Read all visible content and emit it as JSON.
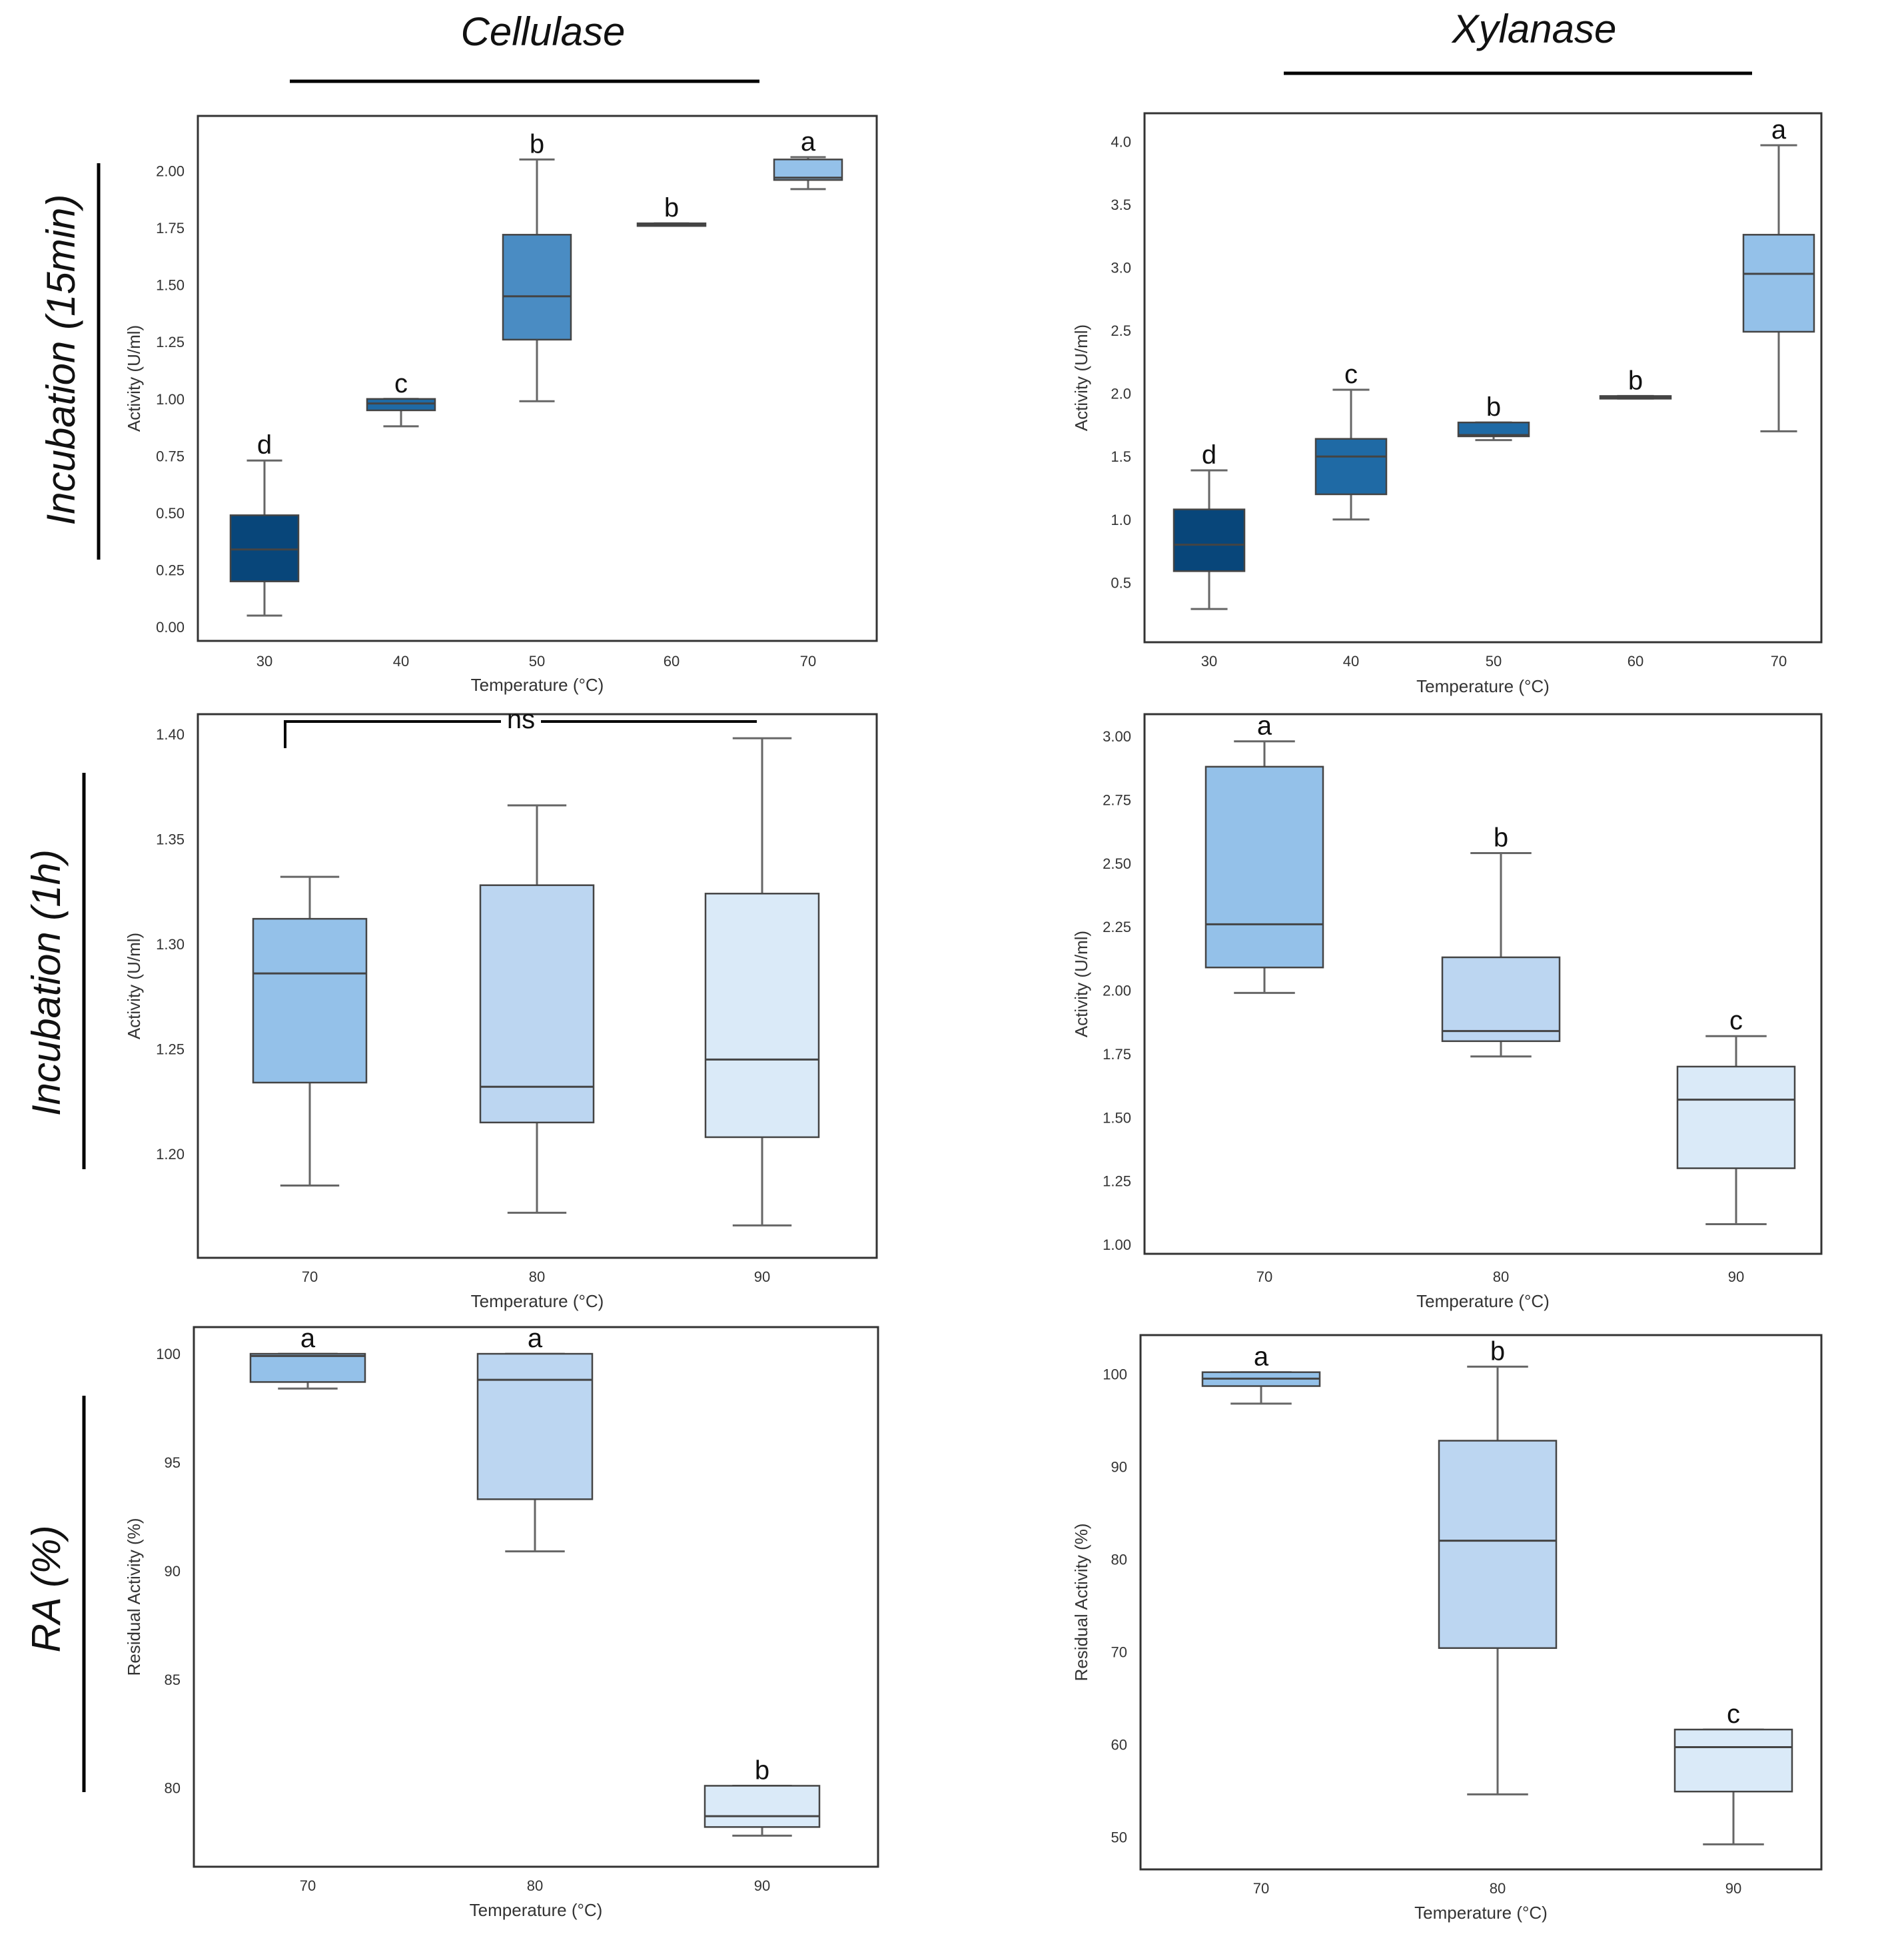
{
  "column_titles": [
    "Cellulase",
    "Xylanase"
  ],
  "row_titles": [
    "Incubation (15min)",
    "Incubation (1h)",
    "RA (%)"
  ],
  "colors": {
    "t30": "#08467a",
    "t40": "#1f6aa5",
    "t50": "#4a8cc3",
    "t60": "#1f6aa5",
    "t70": "#94c1e9",
    "t80": "#bcd6f1",
    "t90": "#daeaf8"
  },
  "chart_data": [
    {
      "type": "box",
      "name": "cellulase-15min",
      "xlabel": "Temperature (°C)",
      "ylabel": "Activity (U/ml)",
      "ylim": [
        -0.02,
        2.2
      ],
      "yticks": [
        0.0,
        0.25,
        0.5,
        0.75,
        1.0,
        1.25,
        1.5,
        1.75,
        2.0
      ],
      "ytick_labels": [
        "0.00",
        "0.25",
        "0.50",
        "0.75",
        "1.00",
        "1.25",
        "1.50",
        "1.75",
        "2.00"
      ],
      "categories": [
        "30",
        "40",
        "50",
        "60",
        "70"
      ],
      "boxes": [
        {
          "min": 0.05,
          "q1": 0.2,
          "median": 0.34,
          "q3": 0.49,
          "max": 0.73,
          "letter": "d",
          "color": "t30"
        },
        {
          "min": 0.88,
          "q1": 0.95,
          "median": 0.98,
          "q3": 1.0,
          "max": 1.0,
          "letter": "c",
          "color": "t40"
        },
        {
          "min": 0.99,
          "q1": 1.26,
          "median": 1.45,
          "q3": 1.72,
          "max": 2.05,
          "letter": "b",
          "color": "t50"
        },
        {
          "min": 1.76,
          "q1": 1.76,
          "median": 1.765,
          "q3": 1.77,
          "max": 1.77,
          "letter": "b",
          "color": "t60"
        },
        {
          "min": 1.92,
          "q1": 1.96,
          "median": 1.97,
          "q3": 2.05,
          "max": 2.06,
          "letter": "a",
          "color": "t70"
        }
      ]
    },
    {
      "type": "box",
      "name": "xylanase-15min",
      "xlabel": "Temperature (°C)",
      "ylabel": "Activity (U/ml)",
      "ylim": [
        0.1,
        4.15
      ],
      "yticks": [
        0.5,
        1.0,
        1.5,
        2.0,
        2.5,
        3.0,
        3.5,
        4.0
      ],
      "ytick_labels": [
        "0.5",
        "1.0",
        "1.5",
        "2.0",
        "2.5",
        "3.0",
        "3.5",
        "4.0"
      ],
      "categories": [
        "30",
        "40",
        "50",
        "60",
        "70"
      ],
      "boxes": [
        {
          "min": 0.29,
          "q1": 0.59,
          "median": 0.8,
          "q3": 1.08,
          "max": 1.39,
          "letter": "d",
          "color": "t30"
        },
        {
          "min": 1.0,
          "q1": 1.2,
          "median": 1.5,
          "q3": 1.64,
          "max": 2.03,
          "letter": "c",
          "color": "t40"
        },
        {
          "min": 1.63,
          "q1": 1.66,
          "median": 1.67,
          "q3": 1.77,
          "max": 1.77,
          "letter": "b",
          "color": "t40"
        },
        {
          "min": 1.96,
          "q1": 1.96,
          "median": 1.97,
          "q3": 1.98,
          "max": 1.98,
          "letter": "b",
          "color": "t60"
        },
        {
          "min": 1.7,
          "q1": 2.49,
          "median": 2.95,
          "q3": 3.26,
          "max": 3.97,
          "letter": "a",
          "color": "t70"
        }
      ]
    },
    {
      "type": "box",
      "name": "cellulase-1h",
      "xlabel": "Temperature (°C)",
      "ylabel": "Activity (U/ml)",
      "ylim": [
        1.155,
        1.405
      ],
      "yticks": [
        1.2,
        1.25,
        1.3,
        1.35,
        1.4
      ],
      "ytick_labels": [
        "1.20",
        "1.25",
        "1.30",
        "1.35",
        "1.40"
      ],
      "categories": [
        "70",
        "80",
        "90"
      ],
      "annotation": "ns",
      "boxes": [
        {
          "min": 1.185,
          "q1": 1.234,
          "median": 1.286,
          "q3": 1.312,
          "max": 1.332,
          "letter": "",
          "color": "t70"
        },
        {
          "min": 1.172,
          "q1": 1.215,
          "median": 1.232,
          "q3": 1.328,
          "max": 1.366,
          "letter": "",
          "color": "t80"
        },
        {
          "min": 1.166,
          "q1": 1.208,
          "median": 1.245,
          "q3": 1.324,
          "max": 1.398,
          "letter": "",
          "color": "t90"
        }
      ]
    },
    {
      "type": "box",
      "name": "xylanase-1h",
      "xlabel": "Temperature (°C)",
      "ylabel": "Activity (U/ml)",
      "ylim": [
        1.0,
        3.05
      ],
      "yticks": [
        1.0,
        1.25,
        1.5,
        1.75,
        2.0,
        2.25,
        2.5,
        2.75,
        3.0
      ],
      "ytick_labels": [
        "1.00",
        "1.25",
        "1.50",
        "1.75",
        "2.00",
        "2.25",
        "2.50",
        "2.75",
        "3.00"
      ],
      "categories": [
        "70",
        "80",
        "90"
      ],
      "boxes": [
        {
          "min": 1.99,
          "q1": 2.09,
          "median": 2.26,
          "q3": 2.88,
          "max": 2.98,
          "letter": "a",
          "color": "t70"
        },
        {
          "min": 1.74,
          "q1": 1.8,
          "median": 1.84,
          "q3": 2.13,
          "max": 2.54,
          "letter": "b",
          "color": "t80"
        },
        {
          "min": 1.08,
          "q1": 1.3,
          "median": 1.57,
          "q3": 1.7,
          "max": 1.82,
          "letter": "c",
          "color": "t90"
        }
      ]
    },
    {
      "type": "box",
      "name": "cellulase-ra",
      "xlabel": "Temperature (°C)",
      "ylabel": "Residual Activity (%)",
      "ylim": [
        76.8,
        100.8
      ],
      "yticks": [
        80,
        85,
        90,
        95,
        100
      ],
      "ytick_labels": [
        "80",
        "85",
        "90",
        "95",
        "100"
      ],
      "categories": [
        "70",
        "80",
        "90"
      ],
      "boxes": [
        {
          "min": 98.4,
          "q1": 98.7,
          "median": 99.9,
          "q3": 100.0,
          "max": 100.0,
          "letter": "a",
          "color": "t70"
        },
        {
          "min": 90.9,
          "q1": 93.3,
          "median": 98.8,
          "q3": 100.0,
          "max": 100.0,
          "letter": "a",
          "color": "t80"
        },
        {
          "min": 77.8,
          "q1": 78.2,
          "median": 78.7,
          "q3": 80.1,
          "max": 80.1,
          "letter": "b",
          "color": "t90"
        }
      ]
    },
    {
      "type": "box",
      "name": "xylanase-ra",
      "xlabel": "Temperature (°C)",
      "ylabel": "Residual Activity (%)",
      "ylim": [
        47.5,
        103.2
      ],
      "yticks": [
        50,
        60,
        70,
        80,
        90,
        100
      ],
      "ytick_labels": [
        "50",
        "60",
        "70",
        "80",
        "90",
        "100"
      ],
      "categories": [
        "70",
        "80",
        "90"
      ],
      "boxes": [
        {
          "min": 96.8,
          "q1": 98.7,
          "median": 99.5,
          "q3": 100.2,
          "max": 100.2,
          "letter": "a",
          "color": "t70"
        },
        {
          "min": 54.6,
          "q1": 70.4,
          "median": 82.0,
          "q3": 92.8,
          "max": 100.8,
          "letter": "b",
          "color": "t80"
        },
        {
          "min": 49.2,
          "q1": 54.9,
          "median": 59.7,
          "q3": 61.6,
          "max": 61.6,
          "letter": "c",
          "color": "t90"
        }
      ]
    }
  ]
}
